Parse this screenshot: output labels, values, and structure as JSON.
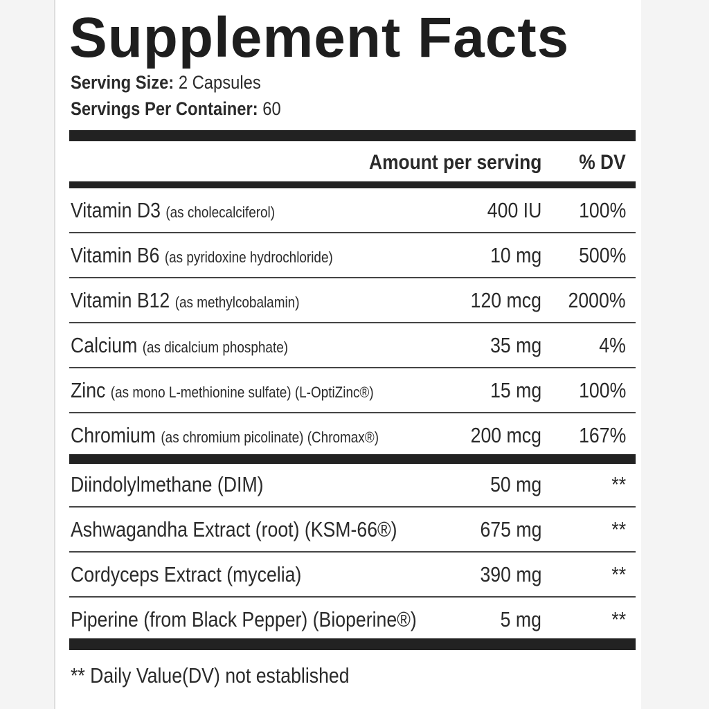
{
  "header": {
    "title": "Supplement Facts",
    "serving_size": {
      "label": "Serving Size:",
      "value": "2 Capsules"
    },
    "servings_per_container": {
      "label": "Servings Per Container:",
      "value": "60"
    }
  },
  "table": {
    "columns": [
      "Amount per serving",
      "% DV"
    ],
    "sections": [
      {
        "rows": [
          {
            "name": "Vitamin D3",
            "description": "(as cholecalciferol)",
            "amount": "400 IU",
            "dv": "100%"
          },
          {
            "name": "Vitamin B6",
            "description": "(as pyridoxine hydrochloride)",
            "amount": "10 mg",
            "dv": "500%"
          },
          {
            "name": "Vitamin B12",
            "description": "(as methylcobalamin)",
            "amount": "120 mcg",
            "dv": "2000%"
          },
          {
            "name": "Calcium",
            "description": "(as dicalcium phosphate)",
            "amount": "35 mg",
            "dv": "4%"
          },
          {
            "name": "Zinc",
            "description": "(as mono L-methionine sulfate) (L-OptiZinc®)",
            "amount": "15 mg",
            "dv": "100%"
          },
          {
            "name": "Chromium",
            "description": "(as chromium picolinate) (Chromax®)",
            "amount": "200 mcg",
            "dv": "167%"
          }
        ]
      },
      {
        "rows": [
          {
            "name": "Diindolylmethane (DIM)",
            "amount": "50 mg",
            "dv": "**"
          },
          {
            "name": "Ashwagandha Extract (root) (KSM-66®)",
            "amount": "675 mg",
            "dv": "**"
          },
          {
            "name": "Cordyceps Extract (mycelia)",
            "amount": "390 mg",
            "dv": "**"
          },
          {
            "name": "Piperine (from Black Pepper) (Bioperine®)",
            "amount": "5 mg",
            "dv": "**"
          }
        ]
      }
    ]
  },
  "footnote": "** Daily Value(DV) not established"
}
